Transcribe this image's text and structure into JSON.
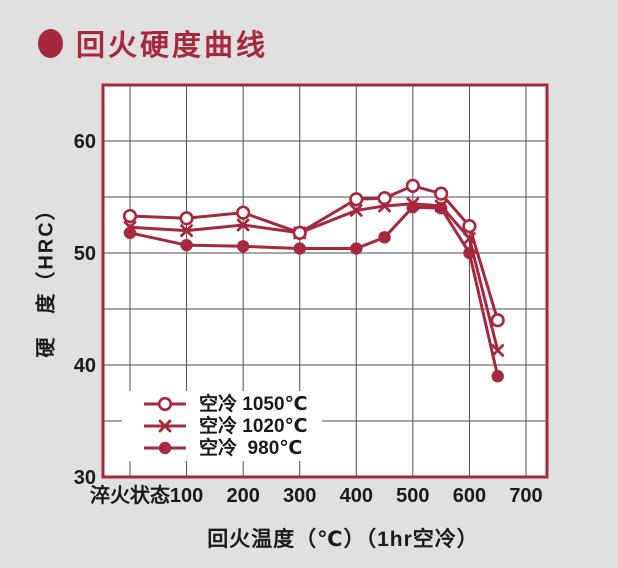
{
  "page": {
    "background": "#e0e0e0"
  },
  "header": {
    "title": "回火硬度曲线"
  },
  "chart_data": {
    "type": "line",
    "title": "回火硬度曲线",
    "xlabel": "回火温度（℃）（1hr空冷）",
    "ylabel": "硬　度（HRC）",
    "xlim": [
      0,
      700
    ],
    "ylim": [
      30,
      65
    ],
    "grid": true,
    "grid_step_x": 100,
    "grid_step_y": 5,
    "x_tick_values": [
      0,
      100,
      200,
      300,
      400,
      500,
      600,
      700
    ],
    "x_tick_labels": [
      "淬火状态",
      "100",
      "200",
      "300",
      "400",
      "500",
      "600",
      "700"
    ],
    "y_tick_values": [
      30,
      40,
      50,
      60
    ],
    "y_tick_labels": [
      "30",
      "40",
      "50",
      "60"
    ],
    "legend_position": "inside-bottom-left",
    "x": [
      0,
      100,
      200,
      300,
      400,
      450,
      500,
      550,
      600,
      650
    ],
    "series": [
      {
        "name": "空冷 1050℃",
        "marker": "open-circle",
        "values": [
          53.3,
          53.1,
          53.6,
          51.8,
          54.8,
          54.9,
          56.0,
          55.3,
          52.4,
          44.0
        ]
      },
      {
        "name": "空冷 1020℃",
        "marker": "x-mark",
        "values": [
          52.3,
          52.0,
          52.5,
          51.8,
          53.8,
          54.2,
          54.4,
          54.2,
          51.3,
          41.3
        ]
      },
      {
        "name": "空冷  980℃",
        "marker": "filled-circle",
        "values": [
          51.8,
          50.7,
          50.6,
          50.4,
          50.4,
          51.4,
          54.1,
          54.0,
          50.0,
          39.0
        ]
      }
    ],
    "colors": {
      "line": "#a5283e",
      "border": "#a5283e",
      "grid": "#4c4c4c",
      "plot_bg": "#ffffff",
      "text": "#1a1a1a",
      "accent": "#a5283e"
    }
  }
}
